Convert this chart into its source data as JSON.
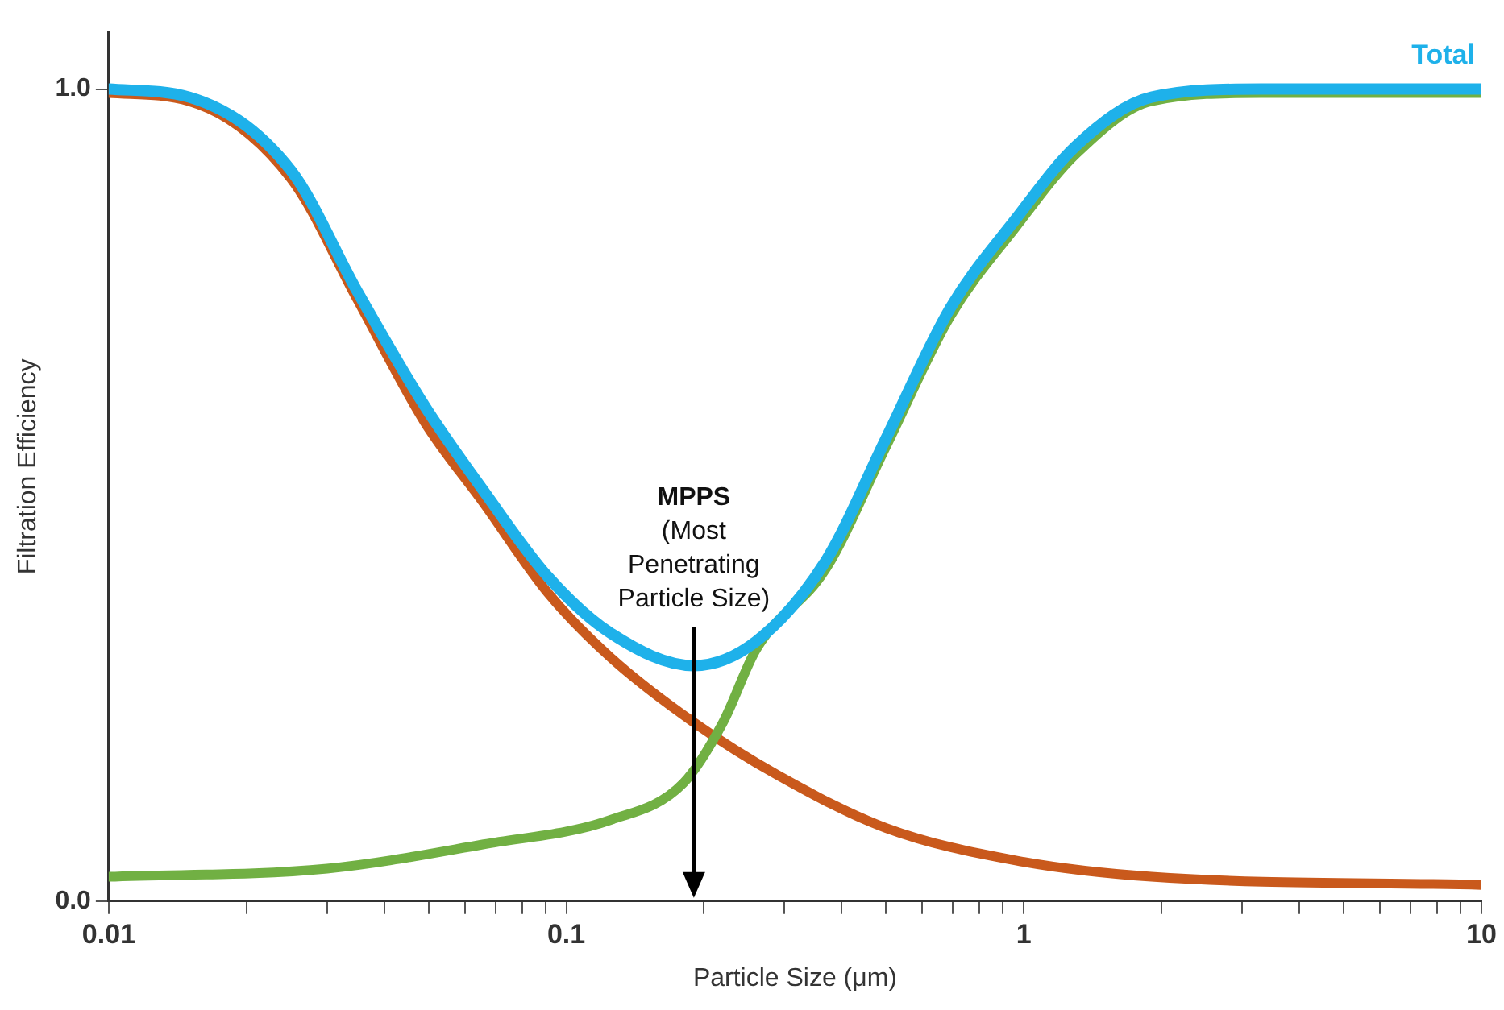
{
  "chart_data": {
    "type": "line",
    "xlabel": "Particle Size (μm)",
    "ylabel": "Filtration Efficiency",
    "log": "x",
    "grid": false,
    "legend": false,
    "marker": "none",
    "line_style": "solid",
    "xlim": [
      0.01,
      10
    ],
    "xticks": [
      0.01,
      {
        "value": 0.02,
        "label": null
      },
      {
        "value": 0.03,
        "label": null
      },
      {
        "value": 0.04,
        "label": null
      },
      {
        "value": 0.05,
        "label": null
      },
      {
        "value": 0.06,
        "label": null
      },
      {
        "value": 0.07,
        "label": null
      },
      {
        "value": 0.08,
        "label": null
      },
      {
        "value": 0.09,
        "label": null
      },
      0.1,
      {
        "value": 0.2,
        "label": null
      },
      {
        "value": 0.3,
        "label": null
      },
      {
        "value": 0.4,
        "label": null
      },
      {
        "value": 0.5,
        "label": null
      },
      {
        "value": 0.6,
        "label": null
      },
      {
        "value": 0.7,
        "label": null
      },
      {
        "value": 0.8,
        "label": null
      },
      {
        "value": 0.9,
        "label": null
      },
      1,
      {
        "value": 2,
        "label": null
      },
      {
        "value": 3,
        "label": null
      },
      {
        "value": 4,
        "label": null
      },
      {
        "value": 5,
        "label": null
      },
      {
        "value": 6,
        "label": null
      },
      {
        "value": 7,
        "label": null
      },
      {
        "value": 8,
        "label": null
      },
      {
        "value": 9,
        "label": null
      },
      10
    ],
    "ylim": [
      0,
      1.07
    ],
    "yticks": [
      {
        "value": 0,
        "label": "0.0"
      },
      {
        "value": 1,
        "label": "1.0"
      }
    ],
    "series": [
      {
        "color": "#c9591c",
        "x": [
          0.01,
          0.015,
          0.025,
          0.035,
          0.049,
          0.066,
          0.091,
          0.125,
          0.19,
          0.29,
          0.5,
          0.96,
          1.9,
          10
        ],
        "values": [
          0.995,
          0.985,
          0.89,
          0.74,
          0.59,
          0.49,
          0.38,
          0.3,
          0.22,
          0.155,
          0.09,
          0.05,
          0.03,
          0.02
        ]
      },
      {
        "color": "#71b043",
        "x": [
          0.01,
          0.03,
          0.066,
          0.125,
          0.18,
          0.22,
          0.26,
          0.37,
          0.5,
          0.69,
          0.96,
          1.3,
          1.9,
          3.3,
          10
        ],
        "values": [
          0.03,
          0.04,
          0.07,
          0.1,
          0.145,
          0.22,
          0.31,
          0.41,
          0.56,
          0.72,
          0.83,
          0.92,
          0.985,
          0.995,
          0.995
        ]
      },
      {
        "name": "Total",
        "color": "#1eb1ea",
        "x": [
          0.01,
          0.015,
          0.025,
          0.035,
          0.049,
          0.066,
          0.091,
          0.125,
          0.19,
          0.26,
          0.37,
          0.5,
          0.69,
          0.96,
          1.3,
          1.9,
          3.3,
          10
        ],
        "values": [
          1.0,
          0.99,
          0.9,
          0.75,
          0.61,
          0.505,
          0.4,
          0.33,
          0.29,
          0.32,
          0.42,
          0.57,
          0.73,
          0.84,
          0.93,
          0.99,
          1.0,
          1.0
        ]
      }
    ],
    "annotations": [
      "MPPS",
      "(Most Penetrating Particle Size)"
    ]
  }
}
